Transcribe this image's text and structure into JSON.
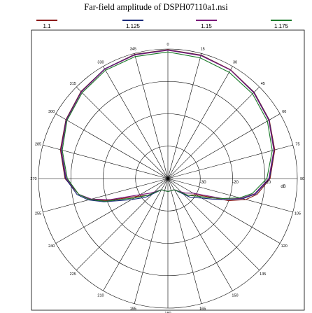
{
  "chart_data": {
    "type": "polar-line",
    "title": "Far-field amplitude of DSPH07110a1.nsi",
    "unit": "dB",
    "radial_ticks": [
      "-30",
      "-20",
      "-10"
    ],
    "radial_range": [
      -40,
      0
    ],
    "angle_ticks": [
      "0",
      "15",
      "30",
      "45",
      "60",
      "75",
      "90",
      "105",
      "120",
      "135",
      "150",
      "165",
      "180",
      "195",
      "210",
      "225",
      "240",
      "255",
      "270",
      "285",
      "300",
      "315",
      "330",
      "345"
    ],
    "grid": true,
    "legend_position": "top",
    "series": [
      {
        "name": "1.1",
        "color": "#8b1a1a",
        "points": [
          [
            0,
            -0.2
          ],
          [
            15,
            -0.5
          ],
          [
            30,
            -1.2
          ],
          [
            45,
            -2.3
          ],
          [
            60,
            -3.8
          ],
          [
            75,
            -5.8
          ],
          [
            90,
            -8.4
          ],
          [
            100,
            -12
          ],
          [
            105,
            -15
          ],
          [
            110,
            -20
          ],
          [
            115,
            -27
          ],
          [
            120,
            -30
          ],
          [
            130,
            -32
          ],
          [
            150,
            -36
          ],
          [
            180,
            -36
          ],
          [
            210,
            -36
          ],
          [
            230,
            -32
          ],
          [
            240,
            -29
          ],
          [
            245,
            -26
          ],
          [
            250,
            -20
          ],
          [
            255,
            -15
          ],
          [
            260,
            -12
          ],
          [
            270,
            -8.2
          ],
          [
            285,
            -5.6
          ],
          [
            300,
            -3.6
          ],
          [
            315,
            -2.0
          ],
          [
            330,
            -0.9
          ],
          [
            345,
            -0.3
          ]
        ]
      },
      {
        "name": "1.125",
        "color": "#1a2a7a",
        "points": [
          [
            0,
            -0.3
          ],
          [
            15,
            -0.6
          ],
          [
            30,
            -1.3
          ],
          [
            45,
            -2.4
          ],
          [
            60,
            -3.9
          ],
          [
            75,
            -6.0
          ],
          [
            90,
            -8.6
          ],
          [
            100,
            -12.5
          ],
          [
            105,
            -16
          ],
          [
            110,
            -21
          ],
          [
            115,
            -25
          ],
          [
            120,
            -28
          ],
          [
            130,
            -31
          ],
          [
            150,
            -36
          ],
          [
            180,
            -36
          ],
          [
            210,
            -36
          ],
          [
            230,
            -31
          ],
          [
            240,
            -27
          ],
          [
            245,
            -24
          ],
          [
            250,
            -19
          ],
          [
            255,
            -14.5
          ],
          [
            260,
            -11.5
          ],
          [
            270,
            -8.4
          ],
          [
            285,
            -5.8
          ],
          [
            300,
            -3.7
          ],
          [
            315,
            -2.1
          ],
          [
            330,
            -0.9
          ],
          [
            345,
            -0.4
          ]
        ]
      },
      {
        "name": "1.15",
        "color": "#7a1a7a",
        "points": [
          [
            0,
            -0.4
          ],
          [
            15,
            -0.7
          ],
          [
            30,
            -1.3
          ],
          [
            45,
            -2.5
          ],
          [
            60,
            -4.0
          ],
          [
            75,
            -6.1
          ],
          [
            90,
            -8.8
          ],
          [
            100,
            -12.8
          ],
          [
            105,
            -16.5
          ],
          [
            110,
            -22
          ],
          [
            115,
            -28
          ],
          [
            120,
            -31
          ],
          [
            130,
            -33
          ],
          [
            150,
            -36
          ],
          [
            180,
            -36
          ],
          [
            210,
            -36
          ],
          [
            230,
            -33
          ],
          [
            240,
            -30
          ],
          [
            245,
            -27
          ],
          [
            250,
            -21
          ],
          [
            255,
            -15.5
          ],
          [
            260,
            -12
          ],
          [
            270,
            -8.6
          ],
          [
            285,
            -5.9
          ],
          [
            300,
            -3.8
          ],
          [
            315,
            -2.2
          ],
          [
            330,
            -1.0
          ],
          [
            345,
            -0.5
          ]
        ]
      },
      {
        "name": "1.175",
        "color": "#1a7a2a",
        "points": [
          [
            0,
            -0.9
          ],
          [
            15,
            -1.4
          ],
          [
            30,
            -2.1
          ],
          [
            45,
            -3.0
          ],
          [
            60,
            -4.5
          ],
          [
            75,
            -6.6
          ],
          [
            90,
            -9.4
          ],
          [
            100,
            -13.5
          ],
          [
            105,
            -17
          ],
          [
            110,
            -22
          ],
          [
            115,
            -26
          ],
          [
            120,
            -29
          ],
          [
            130,
            -32
          ],
          [
            150,
            -36
          ],
          [
            180,
            -36
          ],
          [
            210,
            -36
          ],
          [
            230,
            -32
          ],
          [
            240,
            -28
          ],
          [
            245,
            -25
          ],
          [
            250,
            -19.5
          ],
          [
            255,
            -15
          ],
          [
            260,
            -12
          ],
          [
            270,
            -8.9
          ],
          [
            285,
            -6.2
          ],
          [
            300,
            -4.0
          ],
          [
            315,
            -2.5
          ],
          [
            330,
            -1.4
          ],
          [
            345,
            -1.0
          ]
        ]
      }
    ]
  }
}
